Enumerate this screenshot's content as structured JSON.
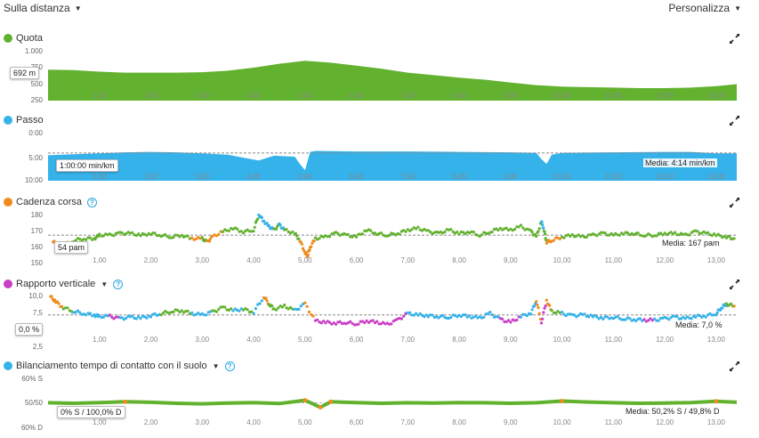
{
  "header": {
    "mode_label": "Sulla distanza",
    "customize_label": "Personalizza"
  },
  "x_axis": {
    "ticks": [
      "1,00",
      "2,00",
      "3,00",
      "4,00",
      "5,00",
      "6,00",
      "7,00",
      "8,00",
      "9,00",
      "10,00",
      "11,00",
      "12,00",
      "13,00"
    ],
    "min": 0,
    "max": 13.4
  },
  "sections": {
    "quota": {
      "title": "Quota",
      "color": "#62b22f",
      "y_ticks": [
        "1.000",
        "750",
        "500",
        "250"
      ],
      "cursor_value": "692 m"
    },
    "passo": {
      "title": "Passo",
      "color": "#36b2ea",
      "y_ticks": [
        "0:00",
        "5:00",
        "10:00"
      ],
      "cursor_value": "1:00:00 min/km",
      "media": "Media: 4:14 min/km"
    },
    "cadenza": {
      "title": "Cadenza corsa",
      "color": "#f08a1c",
      "y_ticks": [
        "180",
        "170",
        "160",
        "150"
      ],
      "cursor_value": "54 pam",
      "media": "Media: 167 pam"
    },
    "rapporto": {
      "title": "Rapporto verticale",
      "color": "#c93fc6",
      "y_ticks": [
        "10,0",
        "7,5",
        "5,0",
        "2,5"
      ],
      "cursor_value": "0,0 %",
      "media": "Media: 7,0 %"
    },
    "bilanciamento": {
      "title": "Bilanciamento tempo di contatto con il suolo",
      "color": "#36b2ea",
      "y_ticks": [
        "60% S",
        "50/50",
        "60% D"
      ],
      "cursor_value": "0% S / 100,0% D",
      "media": "Media: 50,2% S / 49,8% D"
    }
  },
  "chart_data": [
    {
      "type": "area",
      "title": "Quota",
      "x": [
        0,
        0.5,
        1,
        1.5,
        2,
        2.5,
        3,
        3.5,
        4,
        4.5,
        5,
        5.5,
        6,
        6.5,
        7,
        7.5,
        8,
        8.5,
        9,
        9.5,
        10,
        10.5,
        11,
        11.5,
        12,
        12.5,
        13,
        13.4
      ],
      "values": [
        620,
        610,
        580,
        560,
        560,
        560,
        570,
        600,
        660,
        740,
        800,
        760,
        700,
        640,
        560,
        510,
        460,
        420,
        360,
        310,
        280,
        270,
        260,
        250,
        250,
        260,
        290,
        330
      ],
      "ylim": [
        0,
        1000
      ],
      "color": "#62b22f"
    },
    {
      "type": "area",
      "title": "Passo",
      "unit": "min/km",
      "x": [
        0,
        0.5,
        1,
        1.5,
        2,
        2.5,
        3,
        3.5,
        3.8,
        4.1,
        4.4,
        4.8,
        4.9,
        5.0,
        5.1,
        5.2,
        6,
        7,
        8,
        9,
        9.5,
        9.6,
        9.7,
        9.8,
        10,
        11,
        12,
        12.5,
        13,
        13.4
      ],
      "values": [
        4.7,
        4.5,
        4.3,
        4.1,
        4.0,
        4.1,
        4.3,
        4.6,
        5.2,
        5.8,
        4.8,
        5.0,
        6.5,
        7.8,
        4.0,
        3.8,
        3.9,
        3.9,
        4.0,
        4.1,
        4.2,
        5.5,
        6.5,
        4.6,
        4.2,
        4.1,
        4.0,
        4.0,
        4.3,
        4.3
      ],
      "average": 4.23,
      "ylim": [
        0,
        10
      ],
      "color": "#36b2ea"
    },
    {
      "type": "scatter",
      "title": "Cadenza corsa",
      "unit": "pam",
      "average": 167,
      "ylim": [
        150,
        180
      ],
      "x": [
        0.1,
        0.2,
        0.3,
        0.5,
        0.7,
        0.9,
        1.0,
        1.2,
        1.4,
        1.6,
        1.8,
        2.0,
        2.2,
        2.4,
        2.6,
        2.8,
        3.0,
        3.1,
        3.2,
        3.4,
        3.6,
        3.8,
        4.0,
        4.1,
        4.2,
        4.3,
        4.4,
        4.5,
        4.6,
        4.8,
        4.9,
        5.0,
        5.05,
        5.1,
        5.2,
        5.4,
        5.6,
        5.8,
        6.0,
        6.2,
        6.4,
        6.6,
        6.8,
        7.0,
        7.2,
        7.4,
        7.6,
        7.8,
        8.0,
        8.2,
        8.4,
        8.6,
        8.8,
        9.0,
        9.2,
        9.4,
        9.5,
        9.6,
        9.65,
        9.7,
        9.8,
        10.0,
        10.2,
        10.4,
        10.6,
        10.8,
        11.0,
        11.2,
        11.4,
        11.6,
        11.8,
        12.0,
        12.2,
        12.4,
        12.6,
        12.8,
        13.0,
        13.2,
        13.35
      ],
      "values": [
        163,
        162,
        161,
        164,
        165,
        165,
        167,
        167,
        168,
        168,
        167,
        168,
        167,
        166,
        167,
        165,
        165,
        163,
        166,
        169,
        171,
        169,
        170,
        179,
        175,
        172,
        170,
        173,
        170,
        168,
        164,
        157,
        155,
        160,
        165,
        166,
        168,
        167,
        166,
        170,
        168,
        167,
        168,
        170,
        171,
        169,
        168,
        170,
        168,
        169,
        167,
        169,
        171,
        170,
        172,
        169,
        166,
        175,
        170,
        163,
        164,
        166,
        167,
        166,
        167,
        168,
        167,
        168,
        168,
        167,
        167,
        168,
        168,
        167,
        169,
        168,
        167,
        166,
        165
      ],
      "colors": [
        "#f08a1c",
        "#f08a1c",
        "#f08a1c",
        "#62b22f",
        "#62b22f",
        "#62b22f",
        "#62b22f",
        "#62b22f",
        "#62b22f",
        "#62b22f",
        "#62b22f",
        "#62b22f",
        "#62b22f",
        "#62b22f",
        "#62b22f",
        "#f08a1c",
        "#62b22f",
        "#f08a1c",
        "#f08a1c",
        "#62b22f",
        "#62b22f",
        "#62b22f",
        "#62b22f",
        "#36b2ea",
        "#36b2ea",
        "#36b2ea",
        "#62b22f",
        "#36b2ea",
        "#62b22f",
        "#62b22f",
        "#f08a1c",
        "#f08a1c",
        "#f08a1c",
        "#f08a1c",
        "#62b22f",
        "#62b22f",
        "#62b22f",
        "#62b22f",
        "#62b22f",
        "#62b22f",
        "#62b22f",
        "#62b22f",
        "#62b22f",
        "#62b22f",
        "#62b22f",
        "#62b22f",
        "#62b22f",
        "#62b22f",
        "#62b22f",
        "#62b22f",
        "#62b22f",
        "#62b22f",
        "#62b22f",
        "#62b22f",
        "#62b22f",
        "#62b22f",
        "#62b22f",
        "#36b2ea",
        "#62b22f",
        "#f08a1c",
        "#f08a1c",
        "#62b22f",
        "#62b22f",
        "#62b22f",
        "#62b22f",
        "#62b22f",
        "#62b22f",
        "#62b22f",
        "#62b22f",
        "#62b22f",
        "#62b22f",
        "#62b22f",
        "#62b22f",
        "#62b22f",
        "#62b22f",
        "#62b22f",
        "#62b22f",
        "#62b22f",
        "#62b22f"
      ]
    },
    {
      "type": "scatter",
      "title": "Rapporto verticale",
      "unit": "%",
      "average": 7.0,
      "ylim": [
        2.5,
        10
      ],
      "x": [
        0.05,
        0.15,
        0.3,
        0.5,
        0.7,
        0.9,
        1.0,
        1.2,
        1.4,
        1.6,
        1.8,
        2.0,
        2.2,
        2.4,
        2.6,
        2.8,
        3.0,
        3.2,
        3.4,
        3.6,
        3.8,
        4.0,
        4.2,
        4.3,
        4.4,
        4.6,
        4.8,
        5.0,
        5.2,
        5.4,
        5.6,
        5.8,
        6.0,
        6.2,
        6.4,
        6.6,
        6.8,
        7.0,
        7.2,
        7.4,
        7.6,
        7.8,
        8.0,
        8.2,
        8.4,
        8.6,
        8.8,
        9.0,
        9.2,
        9.4,
        9.5,
        9.6,
        9.7,
        9.8,
        10.0,
        10.2,
        10.4,
        10.6,
        10.8,
        11.0,
        11.2,
        11.4,
        11.6,
        11.8,
        12.0,
        12.2,
        12.4,
        12.6,
        12.8,
        13.0,
        13.1,
        13.2,
        13.35
      ],
      "values": [
        9.5,
        8.8,
        8.0,
        7.5,
        7.2,
        7.0,
        6.8,
        6.8,
        6.5,
        6.7,
        6.6,
        6.9,
        7.2,
        7.5,
        7.6,
        7.2,
        7.0,
        7.4,
        8.0,
        7.6,
        7.8,
        7.4,
        9.5,
        8.5,
        7.8,
        8.2,
        7.6,
        8.5,
        6.2,
        6.0,
        5.9,
        6.0,
        5.8,
        6.2,
        6.0,
        5.7,
        6.3,
        7.2,
        7.0,
        6.9,
        6.8,
        6.7,
        7.0,
        6.8,
        6.6,
        7.2,
        6.4,
        6.0,
        6.8,
        7.3,
        9.0,
        6.0,
        9.0,
        7.5,
        7.2,
        6.9,
        7.0,
        6.8,
        6.6,
        6.7,
        6.5,
        6.4,
        6.3,
        6.3,
        6.5,
        6.7,
        6.5,
        6.8,
        6.9,
        7.2,
        8.0,
        8.5,
        8.2
      ],
      "colors": [
        "#f08a1c",
        "#f08a1c",
        "#62b22f",
        "#36b2ea",
        "#36b2ea",
        "#36b2ea",
        "#36b2ea",
        "#c93fc6",
        "#36b2ea",
        "#36b2ea",
        "#36b2ea",
        "#36b2ea",
        "#62b22f",
        "#62b22f",
        "#62b22f",
        "#36b2ea",
        "#36b2ea",
        "#62b22f",
        "#62b22f",
        "#36b2ea",
        "#62b22f",
        "#36b2ea",
        "#f08a1c",
        "#62b22f",
        "#62b22f",
        "#62b22f",
        "#36b2ea",
        "#f08a1c",
        "#c93fc6",
        "#c93fc6",
        "#c93fc6",
        "#c93fc6",
        "#c93fc6",
        "#c93fc6",
        "#c93fc6",
        "#c93fc6",
        "#c93fc6",
        "#36b2ea",
        "#36b2ea",
        "#36b2ea",
        "#36b2ea",
        "#36b2ea",
        "#36b2ea",
        "#36b2ea",
        "#36b2ea",
        "#36b2ea",
        "#c93fc6",
        "#c93fc6",
        "#36b2ea",
        "#36b2ea",
        "#f08a1c",
        "#c93fc6",
        "#f08a1c",
        "#62b22f",
        "#36b2ea",
        "#36b2ea",
        "#36b2ea",
        "#36b2ea",
        "#36b2ea",
        "#36b2ea",
        "#36b2ea",
        "#36b2ea",
        "#c93fc6",
        "#36b2ea",
        "#36b2ea",
        "#36b2ea",
        "#36b2ea",
        "#36b2ea",
        "#36b2ea",
        "#36b2ea",
        "#36b2ea",
        "#62b22f",
        "#f08a1c"
      ]
    },
    {
      "type": "line",
      "title": "Bilanciamento tempo di contatto con il suolo",
      "unit": "% S",
      "average": 50.2,
      "ylim": [
        40,
        60
      ],
      "x": [
        0,
        0.5,
        1,
        1.5,
        2,
        2.5,
        3,
        3.5,
        4,
        4.5,
        5,
        5.3,
        5.5,
        6,
        6.5,
        7,
        7.5,
        8,
        8.5,
        9,
        9.5,
        10,
        10.5,
        11,
        11.5,
        12,
        12.5,
        13,
        13.4
      ],
      "values": [
        50.2,
        50.0,
        50.3,
        50.6,
        50.4,
        50.0,
        49.8,
        50.1,
        50.3,
        49.9,
        51.2,
        48.4,
        50.6,
        50.3,
        50.0,
        50.2,
        50.1,
        50.3,
        50.2,
        50.0,
        50.2,
        50.9,
        50.5,
        50.2,
        50.0,
        50.1,
        50.3,
        50.8,
        50.4
      ],
      "color": "#62b22f"
    }
  ]
}
